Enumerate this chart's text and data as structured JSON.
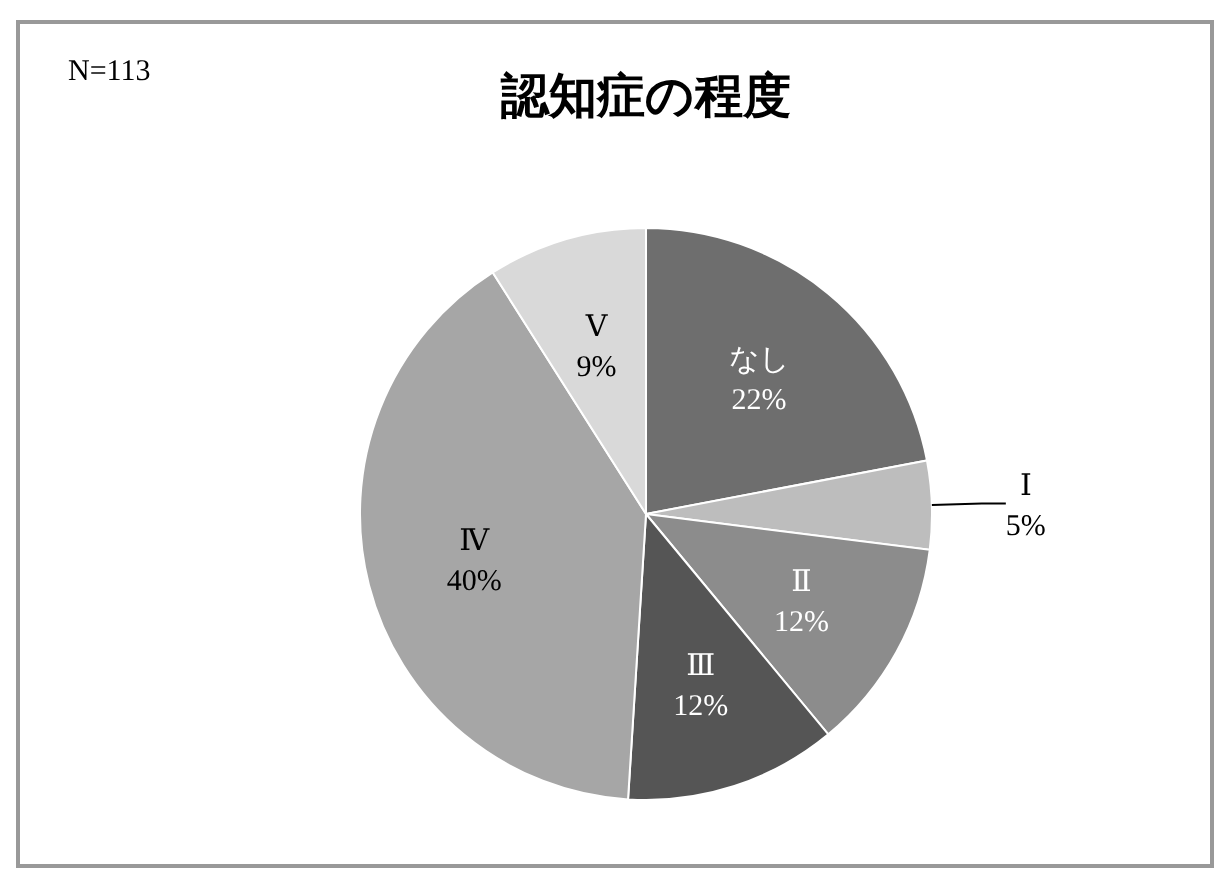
{
  "chart_data": {
    "type": "pie",
    "title": "認知症の程度",
    "annotations": [
      "N=113"
    ],
    "categories": [
      "なし",
      "Ⅰ",
      "Ⅱ",
      "Ⅲ",
      "Ⅳ",
      "Ⅴ"
    ],
    "values": [
      22,
      5,
      12,
      12,
      40,
      9
    ],
    "value_labels": [
      "22%",
      "5%",
      "12%",
      "12%",
      "40%",
      "9%"
    ],
    "colors": [
      "#6e6e6e",
      "#bdbdbd",
      "#8c8c8c",
      "#555555",
      "#a6a6a6",
      "#d9d9d9"
    ]
  }
}
